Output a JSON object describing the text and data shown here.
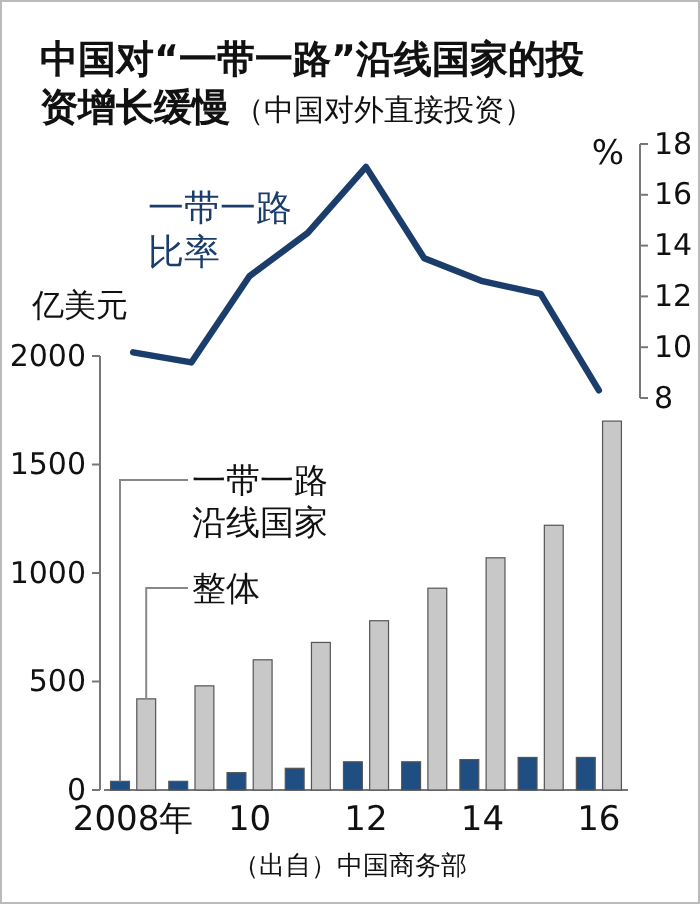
{
  "chart_data": [
    {
      "type": "line",
      "title": "中国对“一带一路”沿线国家的投资增长缓慢",
      "subtitle": "（中国对外直接投资）",
      "categories": [
        null,
        null,
        null,
        null,
        null,
        null,
        null,
        null,
        null
      ],
      "series": [
        {
          "name": "一带一路比率",
          "color": "#1a3d6b",
          "values": [
            9.8,
            9.4,
            12.8,
            14.5,
            17.1,
            13.5,
            12.6,
            12.1,
            8.3
          ]
        }
      ],
      "ylabel": "%",
      "ylim": [
        8,
        18
      ],
      "yticks": [
        8,
        10,
        12,
        14,
        16,
        18
      ],
      "tick_labels": "y"
    },
    {
      "type": "bar",
      "categories": [
        "2008年",
        null,
        "10",
        null,
        "12",
        null,
        "14",
        null,
        "16"
      ],
      "series": [
        {
          "name": "一带一路沿线国家",
          "color": "#1f4e82",
          "values": [
            40,
            40,
            80,
            100,
            130,
            130,
            140,
            150,
            150
          ]
        },
        {
          "name": "整体",
          "color": "#c8c8c8",
          "values": [
            420,
            480,
            600,
            680,
            780,
            930,
            1070,
            1220,
            1700
          ]
        }
      ],
      "ylabel": "亿美元",
      "ylim": [
        0,
        2000
      ],
      "yticks": [
        0,
        500,
        1000,
        1500,
        2000
      ],
      "annotations": [
        "（出自）中国商务部"
      ]
    }
  ]
}
